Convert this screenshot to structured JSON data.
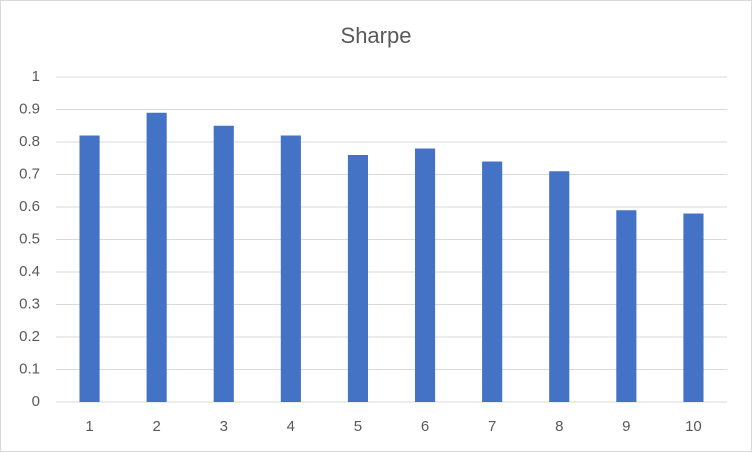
{
  "chart_data": {
    "type": "bar",
    "title": "Sharpe",
    "categories": [
      "1",
      "2",
      "3",
      "4",
      "5",
      "6",
      "7",
      "8",
      "9",
      "10"
    ],
    "values": [
      0.82,
      0.89,
      0.85,
      0.82,
      0.76,
      0.78,
      0.74,
      0.71,
      0.59,
      0.58
    ],
    "color": "#4472c4",
    "ylim": [
      0,
      1
    ],
    "yticks": [
      0,
      0.1,
      0.2,
      0.3,
      0.4,
      0.5,
      0.6,
      0.7,
      0.8,
      0.9,
      1
    ],
    "grid": true
  }
}
